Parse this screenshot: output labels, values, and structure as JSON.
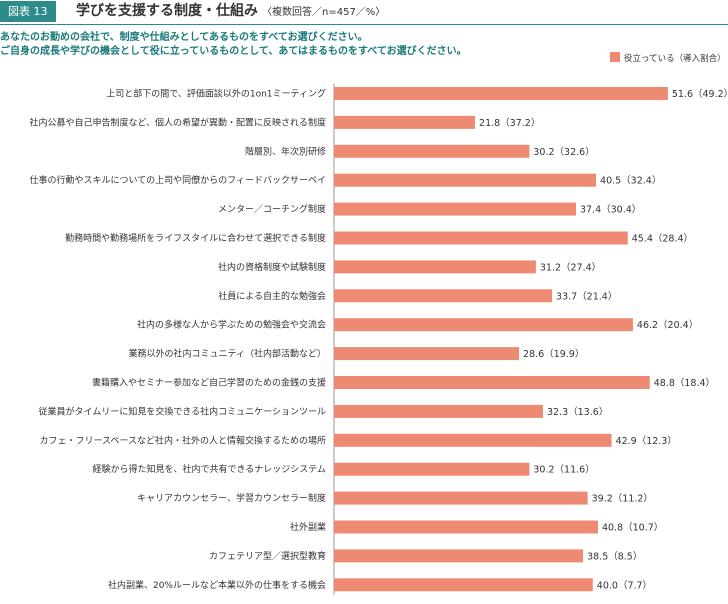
{
  "header": {
    "badge": "図表 13",
    "title": "学びを支援する制度・仕組み",
    "subtitle": "〈複数回答／n=457／%〉"
  },
  "question": {
    "line1": "あなたのお勤めの会社で、制度や仕組みとしてあるものをすべてお選びください。",
    "line2": "ご自身の成長や学びの機会として役に立っているものとして、あてはまるものをすべてお選びください。"
  },
  "legend": {
    "label": "役立っている（導入割合）"
  },
  "colors": {
    "bar": "#ef8a72",
    "accent": "#2e8b8b"
  },
  "chart_data": {
    "type": "bar",
    "orientation": "horizontal",
    "series": [
      {
        "name": "役立っている（導入割合）"
      }
    ],
    "categories": [
      "上司と部下の間で、評価面談以外の1on1ミーティング",
      "社内公募や自己申告制度など、個人の希望が異動・配置に反映される制度",
      "階層別、年次別研修",
      "仕事の行動やスキルについての上司や同僚からのフィードバックサーベイ",
      "メンター／コーチング制度",
      "勤務時間や勤務場所をライフスタイルに合わせて選択できる制度",
      "社内の資格制度や試験制度",
      "社員による自主的な勉強会",
      "社内の多様な人から学ぶための勉強会や交流会",
      "業務以外の社内コミュニティ（社内部活動など）",
      "書籍購入やセミナー参加など自己学習のための金銭の支援",
      "従業員がタイムリーに知見を交換できる社内コミュニケーションツール",
      "カフェ・フリースペースなど社内・社外の人と情報交換するための場所",
      "経験から得た知見を、社内で共有できるナレッジシステム",
      "キャリアカウンセラー、学習カウンセラー制度",
      "社外副業",
      "カフェテリア型／選択型教育",
      "社内副業、20%ルールなど本業以外の仕事をする機会"
    ],
    "values": [
      51.6,
      21.8,
      30.2,
      40.5,
      37.4,
      45.4,
      31.2,
      33.7,
      46.2,
      28.6,
      48.8,
      32.3,
      42.9,
      30.2,
      39.2,
      40.8,
      38.5,
      40.0
    ],
    "adoption": [
      49.2,
      37.2,
      32.6,
      32.4,
      30.4,
      28.4,
      27.4,
      21.4,
      20.4,
      19.9,
      18.4,
      13.6,
      12.3,
      11.6,
      11.2,
      10.7,
      8.5,
      7.7
    ],
    "value_labels": [
      "51.6（49.2）",
      "21.8（37.2）",
      "30.2（32.6）",
      "40.5（32.4）",
      "37.4（30.4）",
      "45.4（28.4）",
      "31.2（27.4）",
      "33.7（21.4）",
      "46.2（20.4）",
      "28.6（19.9）",
      "48.8（18.4）",
      "32.3（13.6）",
      "42.9（12.3）",
      "30.2（11.6）",
      "39.2（11.2）",
      "40.8（10.7）",
      "38.5（8.5）",
      "40.0（7.7）"
    ],
    "xlim": [
      0,
      60
    ],
    "grid": false,
    "legend_position": "top-right"
  }
}
